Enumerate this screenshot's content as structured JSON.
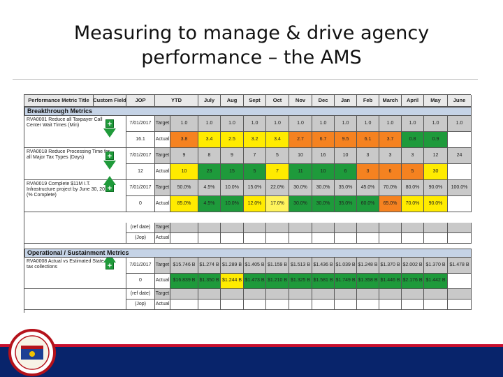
{
  "slide": {
    "title_line1": "Measuring to manage & drive agency",
    "title_line2": "performance – the AMS"
  },
  "table": {
    "headers": [
      "Performance Metric Title",
      "Custom Field",
      "JOP",
      "YTD",
      "July",
      "Aug",
      "Sept",
      "Oct",
      "Nov",
      "Dec",
      "Jan",
      "Feb",
      "March",
      "April",
      "May",
      "June"
    ],
    "breakthrough_label": "Breakthrough Metrics",
    "operational_label": "Operational / Sustainment Metrics",
    "metrics": [
      {
        "desc": "RVA0001 Reduce all Taxpayer Call Center Wait Times (Min)",
        "jop_target": "7/01/2017",
        "jop_actual": "16.1",
        "target_label": "Target",
        "actual_label": "Actual",
        "target": [
          "1.0",
          "1.0",
          "1.0",
          "1.0",
          "1.0",
          "1.0",
          "1.0",
          "1.0",
          "1.0",
          "1.0",
          "1.0",
          "1.0",
          "1.0"
        ],
        "actual": [
          "3.8",
          "3.4",
          "2.5",
          "3.2",
          "3.4",
          "2.7",
          "6.7",
          "9.5",
          "6.1",
          "3.7",
          "0.8",
          "0.9",
          ""
        ]
      },
      {
        "desc": "RVA0018 Reduce Processing Time for all Major Tax Types (Days)",
        "jop_target": "7/01/2017",
        "jop_actual": "12",
        "target_label": "Target",
        "actual_label": "Actual",
        "target": [
          "9",
          "8",
          "9",
          "7",
          "5",
          "10",
          "16",
          "10",
          "3",
          "3",
          "3",
          "12",
          "24"
        ],
        "actual": [
          "10",
          "23",
          "15",
          "5",
          "7",
          "11",
          "10",
          "6",
          "3",
          "6",
          "5",
          "30",
          ""
        ]
      },
      {
        "desc": "RVA0019 Complete $11M I.T. Infrastructure project by June 30, 2018 (% Complete)",
        "jop_target": "7/01/2017",
        "jop_actual": "0",
        "target_label": "Target",
        "actual_label": "Actual",
        "target": [
          "50.0%",
          "4.5%",
          "10.0%",
          "15.0%",
          "22.0%",
          "30.0%",
          "30.0%",
          "35.0%",
          "45.0%",
          "70.0%",
          "80.0%",
          "90.0%",
          "100.0%"
        ],
        "actual": [
          "85.0%",
          "4.5%",
          "10.0%",
          "12.0%",
          "17.0%",
          "30.0%",
          "30.0%",
          "35.0%",
          "60.0%",
          "65.0%",
          "70.0%",
          "90.0%",
          ""
        ]
      },
      {
        "desc": "",
        "jop_target": "(ref date)",
        "jop_actual": "(Jop)",
        "target_label": "Target",
        "actual_label": "Actual",
        "target": [
          "",
          "",
          "",
          "",
          "",
          "",
          "",
          "",
          "",
          "",
          "",
          "",
          ""
        ],
        "actual": [
          "",
          "",
          "",
          "",
          "",
          "",
          "",
          "",
          "",
          "",
          "",
          "",
          ""
        ]
      },
      {
        "desc": "RVA0008 Actual vs Estimated State tax collections",
        "jop_target": "7/01/2017",
        "jop_actual": "0",
        "target_label": "Target",
        "actual_label": "Actual",
        "target": [
          "$15.746 B",
          "$1.274 B",
          "$1.289 B",
          "$1.405 B",
          "$1.159 B",
          "$1.513 B",
          "$1.436 B",
          "$1.039 B",
          "$1.248 B",
          "$1.370 B",
          "$2.002 B",
          "$1.370 B",
          "$1.478 B"
        ],
        "actual": [
          "$16.839 B",
          "$1.350 B",
          "$1.244 B",
          "$1.473 B",
          "$1.210 B",
          "$1.325 B",
          "$1.581 B",
          "$1.749 B",
          "$1.358 B",
          "$1.446 B",
          "$2.176 B",
          "$1.442 B",
          ""
        ]
      },
      {
        "desc": "",
        "jop_target": "(ref date)",
        "jop_actual": "(Jop)",
        "target_label": "Target",
        "actual_label": "Actual",
        "target": [
          "",
          "",
          "",
          "",
          "",
          "",
          "",
          "",
          "",
          "",
          "",
          "",
          ""
        ],
        "actual": [
          "",
          "",
          "",
          "",
          "",
          "",
          "",
          "",
          "",
          "",
          "",
          "",
          ""
        ]
      }
    ]
  },
  "colors": {
    "header_bg": "#e9e9e9",
    "target_bg": "#c9c9c9",
    "section_bg": "#c5d3e6",
    "red": "#e9311a",
    "orange": "#f58220",
    "yellow": "#ffeb00",
    "lightyellow": "#fff35c",
    "green": "#1e9a3b",
    "ltgreen": "#39b54a",
    "gray": "#c9c9c9",
    "white": "#ffffff",
    "footer": "#08246b"
  },
  "actual_colors": [
    [
      "orange",
      "yellow",
      "yellow",
      "yellow",
      "yellow",
      "orange",
      "orange",
      "orange",
      "orange",
      "orange",
      "green",
      "green",
      "white"
    ],
    [
      "yellow",
      "green",
      "green",
      "green",
      "yellow",
      "green",
      "green",
      "green",
      "orange",
      "orange",
      "orange",
      "yellow",
      "white"
    ],
    [
      "yellow",
      "green",
      "green",
      "yellow",
      "lightyellow",
      "green",
      "green",
      "green",
      "green",
      "orange",
      "yellow",
      "yellow",
      "white"
    ],
    [
      "white",
      "white",
      "white",
      "white",
      "white",
      "white",
      "white",
      "white",
      "white",
      "white",
      "white",
      "white",
      "white"
    ],
    [
      "green",
      "green",
      "yellow",
      "green",
      "green",
      "green",
      "green",
      "green",
      "green",
      "green",
      "green",
      "green",
      "white"
    ],
    [
      "white",
      "white",
      "white",
      "white",
      "white",
      "white",
      "white",
      "white",
      "white",
      "white",
      "white",
      "white",
      "white"
    ]
  ],
  "footer_icon": "department-seal-logo"
}
